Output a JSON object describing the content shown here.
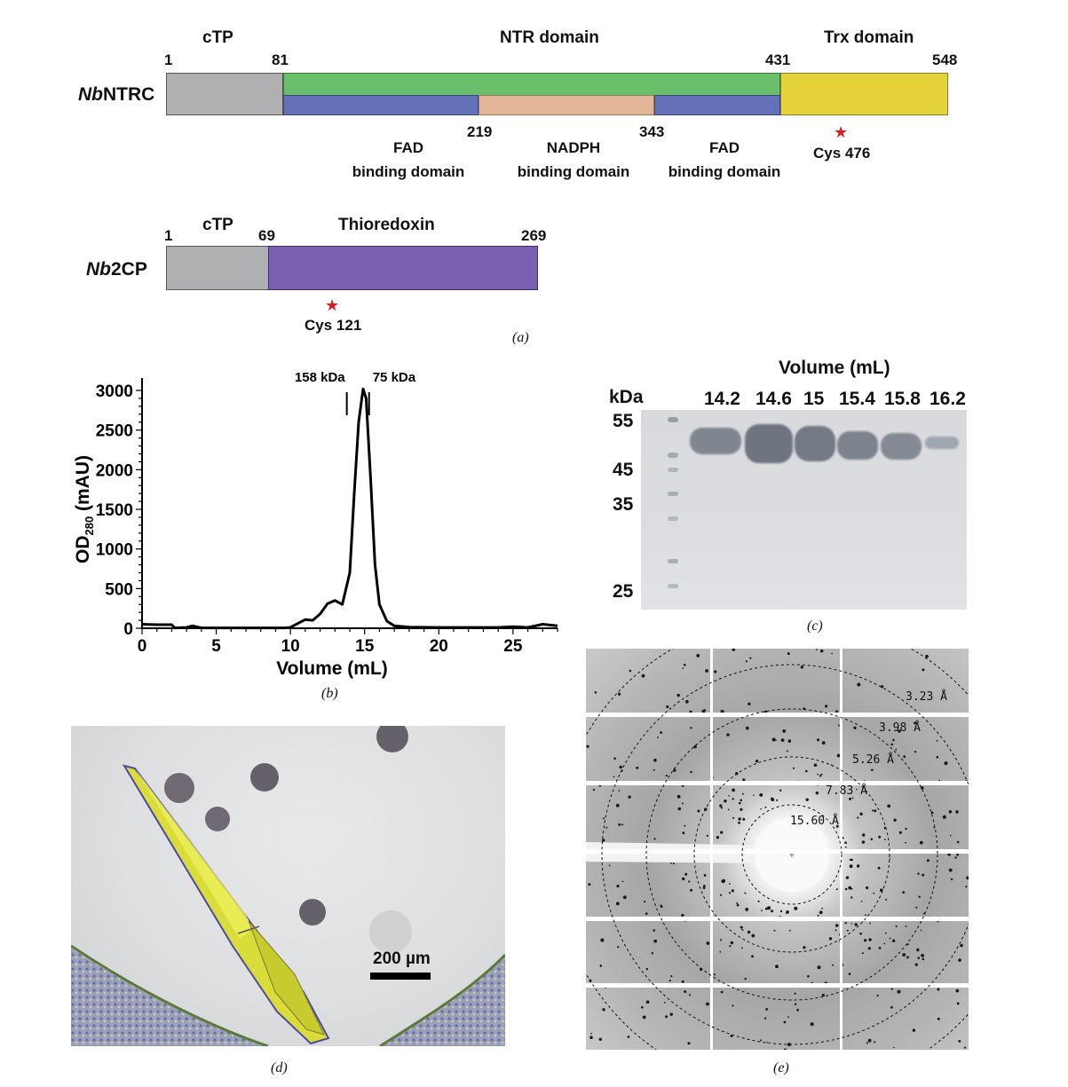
{
  "panel_a": {
    "ntrc": {
      "name_italic": "Nb",
      "name_rest": "NTRC",
      "regions": {
        "ctp": "cTP",
        "ntr": "NTR domain",
        "trx": "Trx domain"
      },
      "positions": {
        "p1": "1",
        "p81": "81",
        "p431": "431",
        "p548": "548",
        "p219": "219",
        "p343": "343"
      },
      "subdomains": {
        "fad1_l1": "FAD",
        "fad1_l2": "binding domain",
        "nadph_l1": "NADPH",
        "nadph_l2": "binding domain",
        "fad2_l1": "FAD",
        "fad2_l2": "binding domain"
      },
      "cys": "Cys 476"
    },
    "cp": {
      "name_italic": "Nb",
      "name_rest": "2CP",
      "regions": {
        "ctp": "cTP",
        "trx": "Thioredoxin"
      },
      "positions": {
        "p1": "1",
        "p69": "69",
        "p269": "269"
      },
      "cys": "Cys 121"
    },
    "caption": "(a)",
    "colors": {
      "ctp": "#b0b0b3",
      "ntr": "#6abf6a",
      "fad": "#6470b8",
      "nadph": "#e3b597",
      "trx": "#e6d33b",
      "thioredoxin": "#7b5fb0",
      "star": "#d42020"
    }
  },
  "panel_b": {
    "caption": "(b)",
    "markers": [
      {
        "label": "158 kDa",
        "x": 13.8
      },
      {
        "label": "75 kDa",
        "x": 15.3
      }
    ],
    "chart_data": {
      "type": "line",
      "xlabel": "Volume (mL)",
      "ylabel_main": "OD",
      "ylabel_sub": "280",
      "ylabel_unit": " (mAU)",
      "xlim": [
        0,
        28
      ],
      "ylim": [
        0,
        3000
      ],
      "xticks": [
        0,
        5,
        10,
        15,
        20,
        25
      ],
      "yticks": [
        0,
        500,
        1000,
        1500,
        2000,
        2500,
        3000
      ],
      "series": [
        {
          "x": [
            0,
            1,
            2,
            2.2,
            3,
            3.4,
            4,
            5,
            6,
            7,
            8,
            9,
            9.6,
            10,
            10.5,
            11,
            11.5,
            12,
            12.5,
            13,
            13.5,
            14,
            14.3,
            14.6,
            14.9,
            15.1,
            15.4,
            15.7,
            16,
            16.5,
            17,
            18,
            20,
            22,
            24,
            25,
            26,
            27,
            28
          ],
          "y": [
            50,
            45,
            45,
            5,
            10,
            30,
            5,
            5,
            5,
            5,
            5,
            5,
            5,
            10,
            60,
            110,
            100,
            180,
            310,
            350,
            300,
            700,
            1700,
            2600,
            3020,
            2900,
            1900,
            800,
            300,
            90,
            30,
            15,
            10,
            10,
            10,
            20,
            10,
            50,
            30
          ]
        }
      ]
    }
  },
  "panel_c": {
    "title": "Volume (mL)",
    "kda": "kDa",
    "lanes": [
      "14.2",
      "14.6",
      "15",
      "15.4",
      "15.8",
      "16.2"
    ],
    "markers": [
      "55",
      "45",
      "35",
      "25"
    ],
    "caption": "(c)"
  },
  "panel_d": {
    "scale_label": "200 µm",
    "caption": "(d)"
  },
  "panel_e": {
    "rings": [
      "3.23 Å",
      "3.98 Å",
      "5.26 Å",
      "7.83 Å",
      "15.60 Å"
    ],
    "caption": "(e)"
  }
}
